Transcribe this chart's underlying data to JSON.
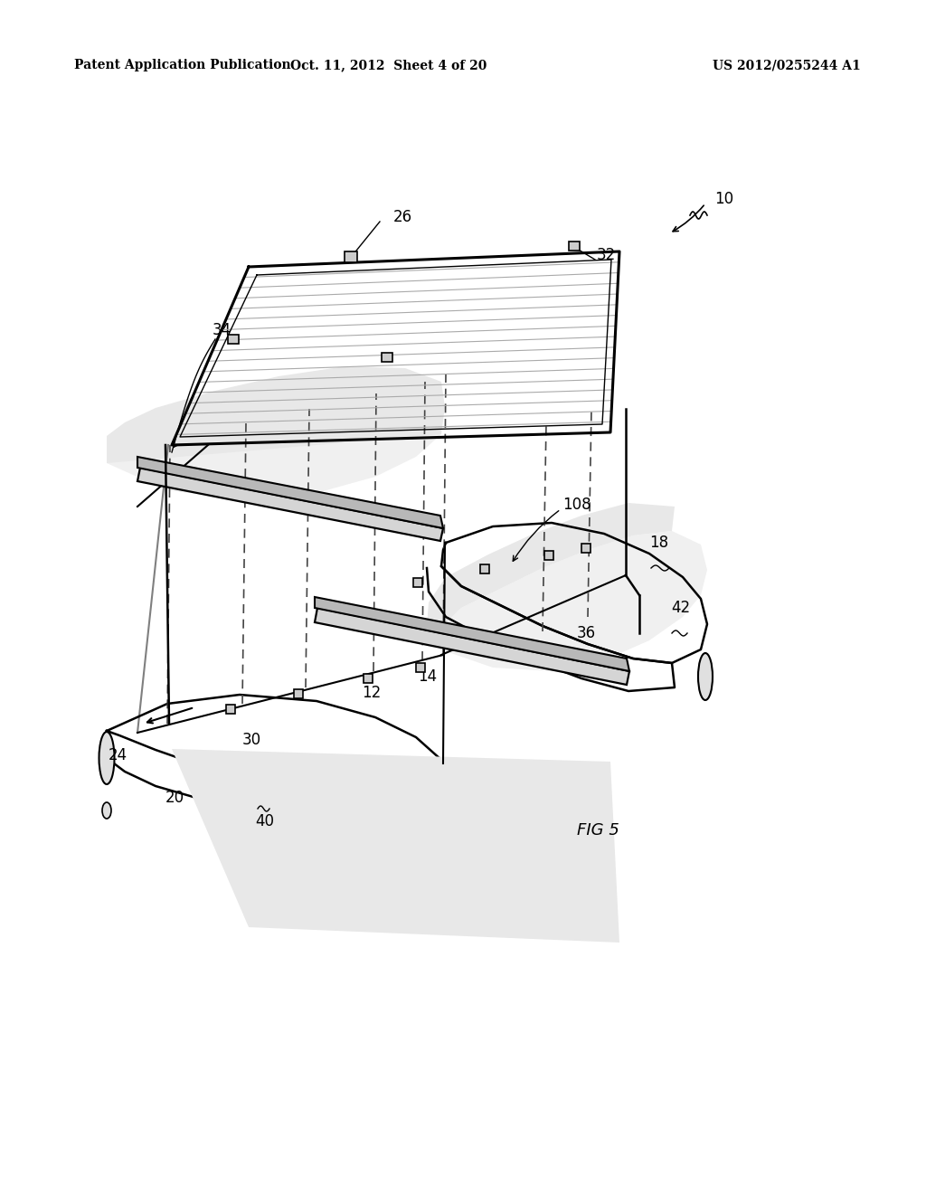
{
  "title_left": "Patent Application Publication",
  "title_center": "Oct. 11, 2012  Sheet 4 of 20",
  "title_right": "US 2012/0255244 A1",
  "fig_label": "FIG 5",
  "background_color": "#ffffff",
  "line_color": "#000000",
  "dashed_color": "#555555",
  "hatch_color": "#aaaaaa"
}
